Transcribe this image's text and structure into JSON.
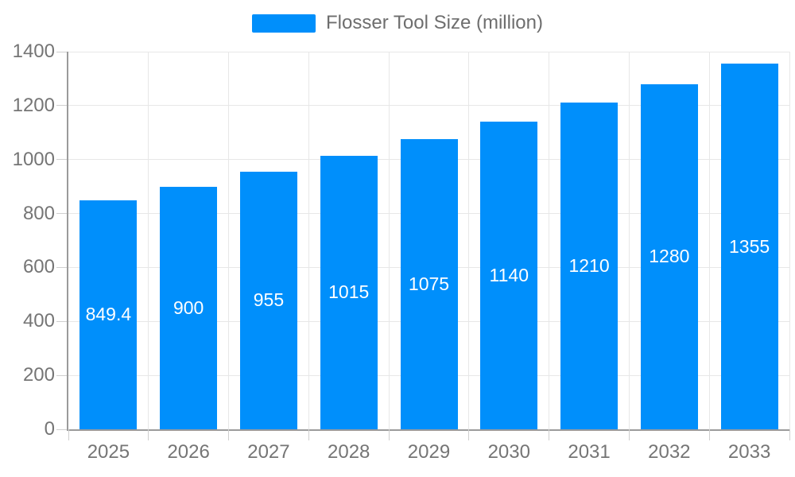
{
  "chart_data": {
    "type": "bar",
    "series_name": "Flosser Tool Size (million)",
    "categories": [
      "2025",
      "2026",
      "2027",
      "2028",
      "2029",
      "2030",
      "2031",
      "2032",
      "2033"
    ],
    "values": [
      849.4,
      900,
      955,
      1015,
      1075,
      1140,
      1210,
      1280,
      1355
    ],
    "title": "",
    "xlabel": "",
    "ylabel": "",
    "ylim": [
      0,
      1400
    ],
    "ytick_step": 200,
    "yticks": [
      0,
      200,
      400,
      600,
      800,
      1000,
      1200,
      1400
    ],
    "grid": true,
    "legend_position": "top",
    "value_labels_inside_bars": true,
    "colors": {
      "bar": "#008FFB",
      "gridline": "#e7e7e7",
      "axis_line": "#9b9b9b",
      "axis_label": "#757575",
      "legend_label": "#6e6e6e",
      "value_label": "#ffffff"
    }
  }
}
